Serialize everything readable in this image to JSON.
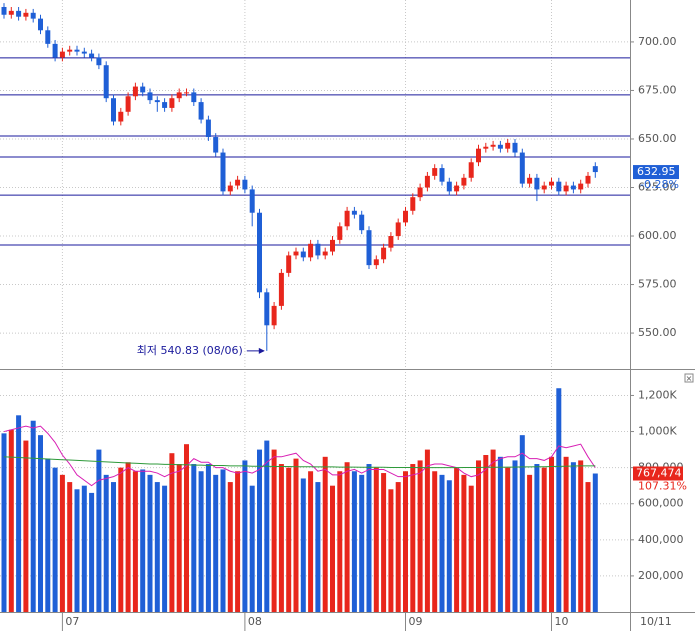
{
  "chart_data": {
    "type": "candlestick",
    "categories": [
      null,
      null,
      null,
      null,
      null,
      null,
      null,
      null,
      "07",
      null,
      null,
      null,
      null,
      null,
      null,
      null,
      null,
      null,
      null,
      null,
      null,
      null,
      null,
      null,
      null,
      null,
      null,
      null,
      null,
      null,
      null,
      null,
      null,
      "08",
      null,
      null,
      null,
      null,
      null,
      null,
      null,
      null,
      null,
      null,
      null,
      null,
      null,
      null,
      null,
      null,
      null,
      null,
      null,
      null,
      null,
      "09",
      null,
      null,
      null,
      null,
      null,
      null,
      null,
      null,
      null,
      null,
      null,
      null,
      null,
      null,
      null,
      null,
      null,
      null,
      null,
      "10",
      null,
      null,
      null,
      null,
      null,
      null
    ],
    "open": [
      718,
      714,
      716,
      713,
      715,
      712,
      706,
      699,
      692,
      695,
      696,
      695,
      694,
      692,
      688,
      671,
      659,
      664,
      672,
      677,
      674,
      670,
      669,
      666,
      671,
      674,
      674,
      669,
      660,
      651,
      643,
      623,
      626,
      629,
      624,
      612,
      571,
      554,
      564,
      581,
      590,
      592,
      589,
      596,
      590,
      592,
      598,
      605,
      613,
      611,
      603,
      585,
      588,
      594,
      600,
      607,
      613,
      620,
      625,
      631,
      635,
      628,
      623,
      626,
      630,
      638,
      645,
      646,
      647,
      645,
      648,
      643,
      627,
      630,
      624,
      626,
      628,
      623,
      626,
      624,
      627,
      636
    ],
    "high": [
      720,
      718,
      718,
      717,
      717,
      714,
      708,
      701,
      697,
      698,
      698,
      697,
      696,
      694,
      690,
      673,
      666,
      674,
      679,
      679,
      676,
      672,
      671,
      673,
      676,
      676,
      676,
      671,
      662,
      653,
      645,
      628,
      631,
      631,
      626,
      614,
      573,
      566,
      583,
      592,
      594,
      594,
      598,
      598,
      594,
      600,
      607,
      615,
      615,
      613,
      605,
      590,
      596,
      602,
      609,
      615,
      622,
      627,
      633,
      637,
      637,
      630,
      628,
      632,
      640,
      647,
      648,
      649,
      649,
      650,
      650,
      645,
      632,
      632,
      628,
      630,
      630,
      628,
      628,
      629,
      633,
      638
    ],
    "low": [
      712,
      712,
      711,
      711,
      710,
      704,
      697,
      690,
      690,
      693,
      693,
      692,
      690,
      686,
      669,
      657,
      657,
      662,
      670,
      672,
      668,
      664,
      664,
      664,
      669,
      672,
      667,
      658,
      649,
      641,
      621,
      621,
      624,
      622,
      605,
      568,
      540.83,
      552,
      562,
      579,
      588,
      587,
      587,
      588,
      588,
      590,
      596,
      603,
      609,
      601,
      583,
      583,
      586,
      592,
      598,
      605,
      611,
      618,
      623,
      629,
      626,
      621,
      621,
      624,
      628,
      636,
      643,
      644,
      643,
      643,
      641,
      625,
      625,
      618,
      622,
      624,
      621,
      621,
      622,
      622,
      625,
      630
    ],
    "close": [
      714,
      716,
      713,
      715,
      712,
      706,
      699,
      692,
      695,
      696,
      695,
      694,
      692,
      688,
      671,
      659,
      664,
      672,
      677,
      674,
      670,
      669,
      666,
      671,
      674,
      674,
      669,
      660,
      651,
      643,
      623,
      626,
      629,
      624,
      612,
      571,
      554,
      564,
      581,
      590,
      592,
      589,
      596,
      590,
      592,
      598,
      605,
      613,
      611,
      603,
      585,
      588,
      594,
      600,
      607,
      613,
      620,
      625,
      631,
      635,
      628,
      623,
      626,
      630,
      638,
      645,
      646,
      647,
      645,
      648,
      643,
      627,
      630,
      624,
      626,
      628,
      623,
      626,
      624,
      627,
      631,
      632.95
    ],
    "up_color": "#e8261c",
    "down_color": "#1f5fd6",
    "ylim": [
      532,
      721.6
    ],
    "yticks": [
      {
        "value": 550,
        "label": "550.00"
      },
      {
        "value": 575,
        "label": "575.00"
      },
      {
        "value": 600,
        "label": "600.00"
      },
      {
        "value": 625,
        "label": "625.00"
      },
      {
        "value": 650,
        "label": "650.00"
      },
      {
        "value": 675,
        "label": "675.00"
      },
      {
        "value": 700,
        "label": "700.00"
      }
    ],
    "grid": true,
    "levels": [
      691.8,
      672.7,
      651.5,
      640.7,
      621.1,
      595.4
    ],
    "level_color": "#1a1a9c",
    "low_annotation": "최저 540.83 (08/06)",
    "last_price_label": "632.95",
    "last_change_label": "-0.28%",
    "current_date": "10/11",
    "volume": {
      "ylim": [
        0,
        1330000
      ],
      "yticks": [
        {
          "value": 200000,
          "label": "200,000"
        },
        {
          "value": 400000,
          "label": "400,000"
        },
        {
          "value": 600000,
          "label": "600,000"
        },
        {
          "value": 800000,
          "label": "800,000"
        },
        {
          "value": 1000000,
          "label": "1,000K"
        },
        {
          "value": 1200000,
          "label": "1,200K"
        }
      ],
      "values": [
        990000,
        1010000,
        1090000,
        950000,
        1060000,
        980000,
        850000,
        800000,
        760000,
        720000,
        680000,
        700000,
        660000,
        900000,
        760000,
        720000,
        800000,
        830000,
        780000,
        790000,
        760000,
        720000,
        700000,
        880000,
        820000,
        930000,
        820000,
        780000,
        820000,
        760000,
        790000,
        720000,
        780000,
        840000,
        700000,
        900000,
        950000,
        900000,
        820000,
        800000,
        850000,
        740000,
        780000,
        720000,
        860000,
        700000,
        780000,
        830000,
        780000,
        760000,
        820000,
        800000,
        770000,
        680000,
        720000,
        780000,
        820000,
        840000,
        900000,
        780000,
        760000,
        730000,
        800000,
        760000,
        700000,
        840000,
        870000,
        900000,
        860000,
        800000,
        840000,
        980000,
        760000,
        820000,
        800000,
        860000,
        1240000,
        860000,
        830000,
        840000,
        720000,
        767474
      ],
      "last_volume_label": "767,474",
      "last_ratio_label": "107.31%",
      "ma": [
        {
          "color": "#d81fb4",
          "values": [
            1000000,
            1010000,
            1020000,
            1030000,
            1020000,
            1030000,
            990000,
            940000,
            870000,
            820000,
            760000,
            730000,
            700000,
            730000,
            740000,
            750000,
            770000,
            800000,
            780000,
            780000,
            780000,
            770000,
            750000,
            770000,
            780000,
            810000,
            850000,
            830000,
            830000,
            800000,
            800000,
            780000,
            770000,
            780000,
            770000,
            790000,
            830000,
            860000,
            860000,
            870000,
            880000,
            840000,
            820000,
            780000,
            790000,
            760000,
            760000,
            780000,
            790000,
            770000,
            790000,
            790000,
            790000,
            770000,
            750000,
            750000,
            760000,
            770000,
            810000,
            820000,
            820000,
            810000,
            800000,
            770000,
            750000,
            760000,
            790000,
            830000,
            850000,
            860000,
            860000,
            880000,
            850000,
            850000,
            840000,
            860000,
            920000,
            910000,
            920000,
            930000,
            860000,
            800000
          ]
        },
        {
          "color": "#2e9a3a",
          "values": [
            860000,
            858000,
            856000,
            854000,
            852000,
            850000,
            848000,
            846000,
            844000,
            842000,
            840000,
            838000,
            836000,
            834000,
            832000,
            830000,
            828000,
            826000,
            824000,
            822000,
            820000,
            820000,
            818000,
            818000,
            816000,
            816000,
            814000,
            814000,
            812000,
            812000,
            812000,
            810000,
            810000,
            810000,
            808000,
            808000,
            808000,
            806000,
            806000,
            806000,
            805000,
            805000,
            805000,
            804000,
            804000,
            804000,
            803000,
            803000,
            803000,
            802000,
            802000,
            802000,
            802000,
            801000,
            801000,
            801000,
            801000,
            800000,
            800000,
            800000,
            800000,
            800000,
            800000,
            801000,
            801000,
            801000,
            802000,
            802000,
            802000,
            803000,
            803000,
            804000,
            804000,
            805000,
            805000,
            806000,
            807000,
            808000,
            809000,
            810000,
            810000,
            810000
          ]
        }
      ]
    }
  }
}
